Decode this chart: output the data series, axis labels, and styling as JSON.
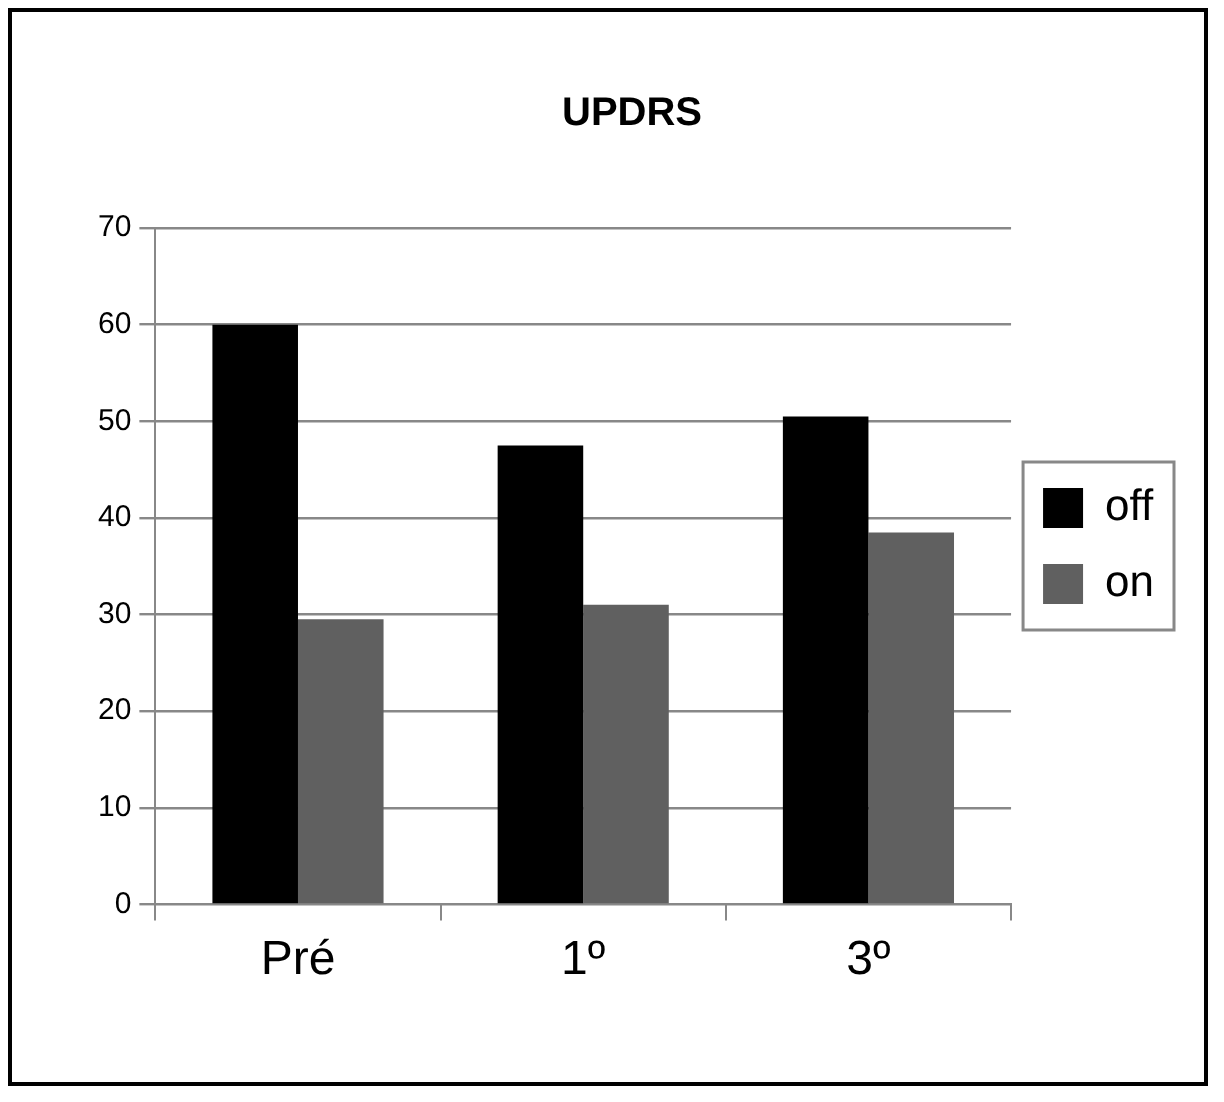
{
  "chart_data": {
    "type": "bar",
    "title": "UPDRS",
    "categories": [
      "Pré",
      "1º",
      "3º"
    ],
    "series": [
      {
        "name": "off",
        "color": "#000000",
        "values": [
          60,
          47.5,
          50.5
        ]
      },
      {
        "name": "on",
        "color": "#606060",
        "values": [
          29.5,
          31,
          38.5
        ]
      }
    ],
    "ylim": [
      0,
      70
    ],
    "yticks": [
      0,
      10,
      20,
      30,
      40,
      50,
      60,
      70
    ],
    "grid": "y",
    "legend": "right"
  }
}
